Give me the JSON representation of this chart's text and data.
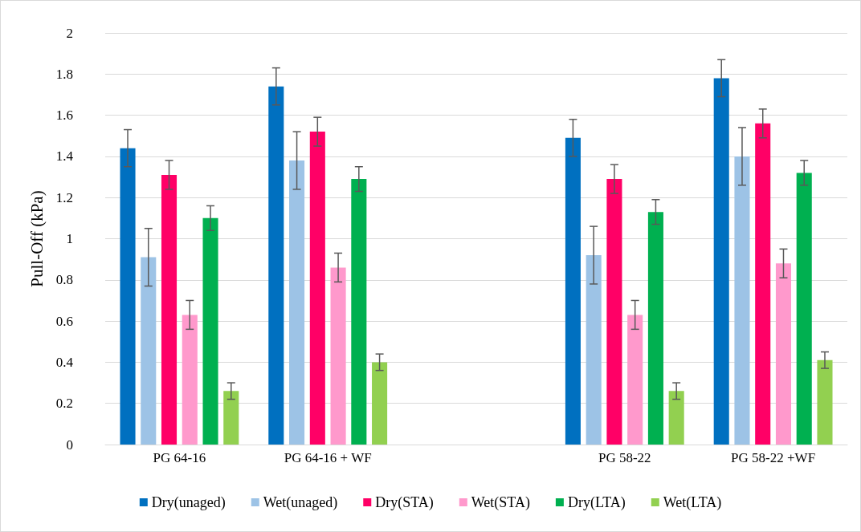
{
  "chart_data": {
    "type": "bar",
    "ylabel": "Pull-Off (kPa)",
    "categories": [
      "PG 64-16",
      "PG 64-16 + WF",
      null,
      "PG 58-22",
      "PG 58-22 +WF"
    ],
    "series": [
      {
        "name": "Dry(unaged)",
        "color": "#0070c0",
        "values": [
          1.44,
          1.74,
          null,
          1.49,
          1.78
        ],
        "errors": [
          0.09,
          0.09,
          null,
          0.09,
          0.09
        ]
      },
      {
        "name": "Wet(unaged)",
        "color": "#9dc3e6",
        "values": [
          0.91,
          1.38,
          null,
          0.92,
          1.4
        ],
        "errors": [
          0.14,
          0.14,
          null,
          0.14,
          0.14
        ]
      },
      {
        "name": "Dry(STA)",
        "color": "#ff0066",
        "values": [
          1.31,
          1.52,
          null,
          1.29,
          1.56
        ],
        "errors": [
          0.07,
          0.07,
          null,
          0.07,
          0.07
        ]
      },
      {
        "name": "Wet(STA)",
        "color": "#ff99cc",
        "values": [
          0.63,
          0.86,
          null,
          0.63,
          0.88
        ],
        "errors": [
          0.07,
          0.07,
          null,
          0.07,
          0.07
        ]
      },
      {
        "name": "Dry(LTA)",
        "color": "#00b050",
        "values": [
          1.1,
          1.29,
          null,
          1.13,
          1.32
        ],
        "errors": [
          0.06,
          0.06,
          null,
          0.06,
          0.06
        ]
      },
      {
        "name": "Wet(LTA)",
        "color": "#92d050",
        "values": [
          0.26,
          0.4,
          null,
          0.26,
          0.41
        ],
        "errors": [
          0.04,
          0.04,
          null,
          0.04,
          0.04
        ]
      }
    ],
    "ylim": [
      0,
      2
    ],
    "yticks": [
      0,
      0.2,
      0.4,
      0.6,
      0.8,
      1,
      1.2,
      1.4,
      1.6,
      1.8,
      2
    ],
    "grid": "y",
    "legend": "bottom"
  }
}
